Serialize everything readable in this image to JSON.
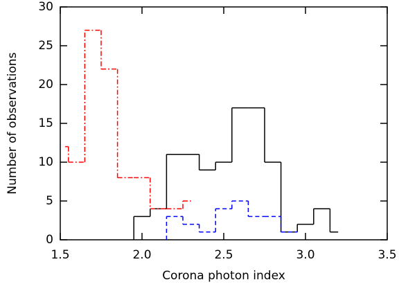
{
  "chart_data": {
    "type": "histogram",
    "xlabel": "Corona photon index",
    "ylabel": "Number of observations",
    "xlim": [
      1.5,
      3.5
    ],
    "ylim": [
      0,
      30
    ],
    "xticks": [
      {
        "value": 1.5,
        "label": "1.5"
      },
      {
        "value": 2.0,
        "label": "2.0"
      },
      {
        "value": 2.5,
        "label": "2.5"
      },
      {
        "value": 3.0,
        "label": "3.0"
      },
      {
        "value": 3.5,
        "label": "3.5"
      }
    ],
    "yticks": [
      0,
      5,
      10,
      15,
      20,
      25,
      30
    ],
    "series": [
      {
        "color": "#000000",
        "style": "solid",
        "bins": [
          1.95,
          2.05,
          2.15,
          2.25,
          2.35,
          2.45,
          2.55,
          2.65,
          2.75,
          2.85,
          2.95,
          3.05,
          3.15,
          3.2
        ],
        "values": [
          3,
          4,
          11,
          11,
          9,
          10,
          17,
          17,
          10,
          1,
          2,
          4,
          1
        ]
      },
      {
        "color": "#ff0000",
        "style": "dashdot",
        "bins": [
          1.53,
          1.55,
          1.65,
          1.75,
          1.85,
          1.95,
          2.05,
          2.15,
          2.25,
          2.3
        ],
        "values": [
          12,
          10,
          27,
          22,
          8,
          8,
          4,
          4,
          5
        ]
      },
      {
        "color": "#0000ff",
        "style": "dashed",
        "bins": [
          2.15,
          2.25,
          2.35,
          2.45,
          2.55,
          2.65,
          2.75,
          2.85,
          2.95
        ],
        "values": [
          3,
          2,
          1,
          4,
          5,
          3,
          3,
          1
        ]
      }
    ]
  }
}
